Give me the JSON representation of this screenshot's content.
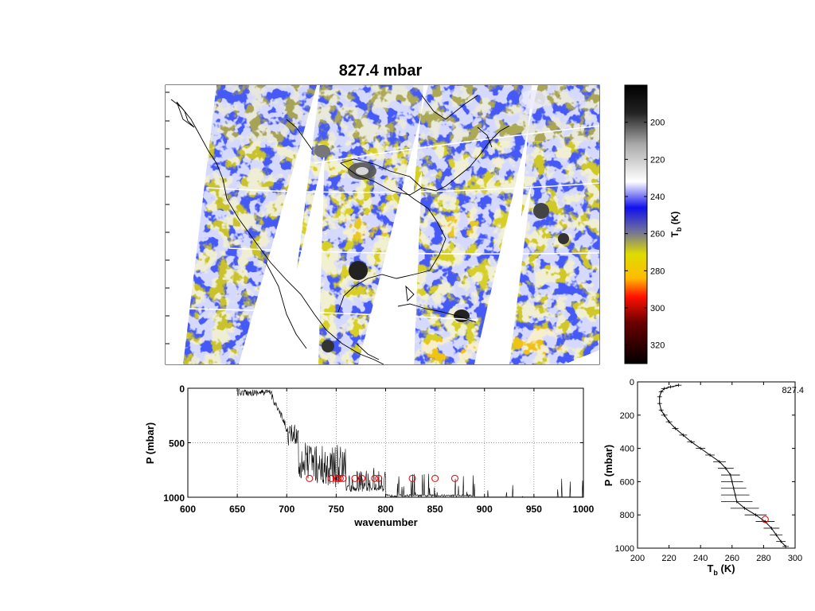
{
  "figure_title": "827.4 mbar",
  "chart_data": [
    {
      "type": "heatmap",
      "name": "map-panel",
      "title": "827.4 mbar",
      "colorbar": {
        "label_main": "T",
        "label_sub": "b",
        "label_unit": " (K)",
        "range": [
          180,
          330
        ],
        "ticks": [
          200,
          220,
          240,
          260,
          280,
          300,
          320
        ],
        "tick_labels": [
          "200",
          "220",
          "240",
          "260",
          "280",
          "300",
          "320"
        ],
        "stops": [
          {
            "value": 180,
            "color": "#000000"
          },
          {
            "value": 195,
            "color": "#222222"
          },
          {
            "value": 212,
            "color": "#aaaaaa"
          },
          {
            "value": 232,
            "color": "#ffffff"
          },
          {
            "value": 246,
            "color": "#1010ee"
          },
          {
            "value": 260,
            "color": "#7a7a90"
          },
          {
            "value": 271,
            "color": "#dddd00"
          },
          {
            "value": 284,
            "color": "#ffbb00"
          },
          {
            "value": 294,
            "color": "#ff1100"
          },
          {
            "value": 308,
            "color": "#6a0000"
          },
          {
            "value": 330,
            "color": "#000000"
          }
        ]
      }
    },
    {
      "type": "line",
      "name": "wavenumber-panel",
      "xlabel": "wavenumber",
      "ylabel": "P (mbar)",
      "xlim": [
        600,
        1000
      ],
      "ylim": [
        1000,
        0
      ],
      "x_ticks": [
        600,
        650,
        700,
        750,
        800,
        850,
        900,
        950,
        1000
      ],
      "x_tick_labels": [
        "600",
        "650",
        "700",
        "750",
        "800",
        "850",
        "900",
        "950",
        "1000"
      ],
      "y_ticks": [
        0,
        500,
        1000
      ],
      "y_tick_labels": [
        "0",
        "500",
        "1000"
      ],
      "grid": true,
      "selected_channels": {
        "pressure": 827.4,
        "x": [
          723,
          745,
          750,
          752,
          754,
          757,
          769,
          776,
          789,
          793,
          827,
          850,
          870
        ]
      }
    },
    {
      "type": "line",
      "name": "profile-panel",
      "xlabel_main": "T",
      "xlabel_sub": "b",
      "xlabel_unit": " (K)",
      "ylabel": "P (mbar)",
      "xlim": [
        200,
        300
      ],
      "ylim": [
        1000,
        0
      ],
      "x_ticks": [
        200,
        220,
        240,
        260,
        280,
        300
      ],
      "x_tick_labels": [
        "200",
        "220",
        "240",
        "260",
        "280",
        "300"
      ],
      "y_ticks": [
        0,
        200,
        400,
        600,
        800,
        1000
      ],
      "y_tick_labels": [
        "0",
        "200",
        "400",
        "600",
        "800",
        "1000"
      ],
      "annotation": "827.4",
      "profile": {
        "p": [
          20,
          30,
          40,
          60,
          90,
          130,
          170,
          200,
          240,
          280,
          320,
          360,
          400,
          440,
          480,
          520,
          560,
          600,
          640,
          680,
          720,
          760,
          800,
          840,
          880,
          920,
          960,
          990
        ],
        "t": [
          226,
          221,
          217,
          215,
          214,
          214,
          215,
          217,
          220,
          224,
          229,
          234,
          240,
          246,
          252,
          256,
          259,
          260,
          261,
          262,
          263,
          268,
          275,
          281,
          285,
          288,
          291,
          294
        ],
        "err": [
          2,
          2,
          2,
          1.5,
          1.5,
          1.5,
          1.5,
          2,
          2,
          2,
          2.5,
          2.5,
          3,
          3,
          4,
          5,
          6,
          7,
          8,
          9,
          10,
          9,
          7,
          6,
          5,
          4,
          3,
          2
        ]
      },
      "marker": {
        "t": 281,
        "p": 827.4
      }
    }
  ]
}
